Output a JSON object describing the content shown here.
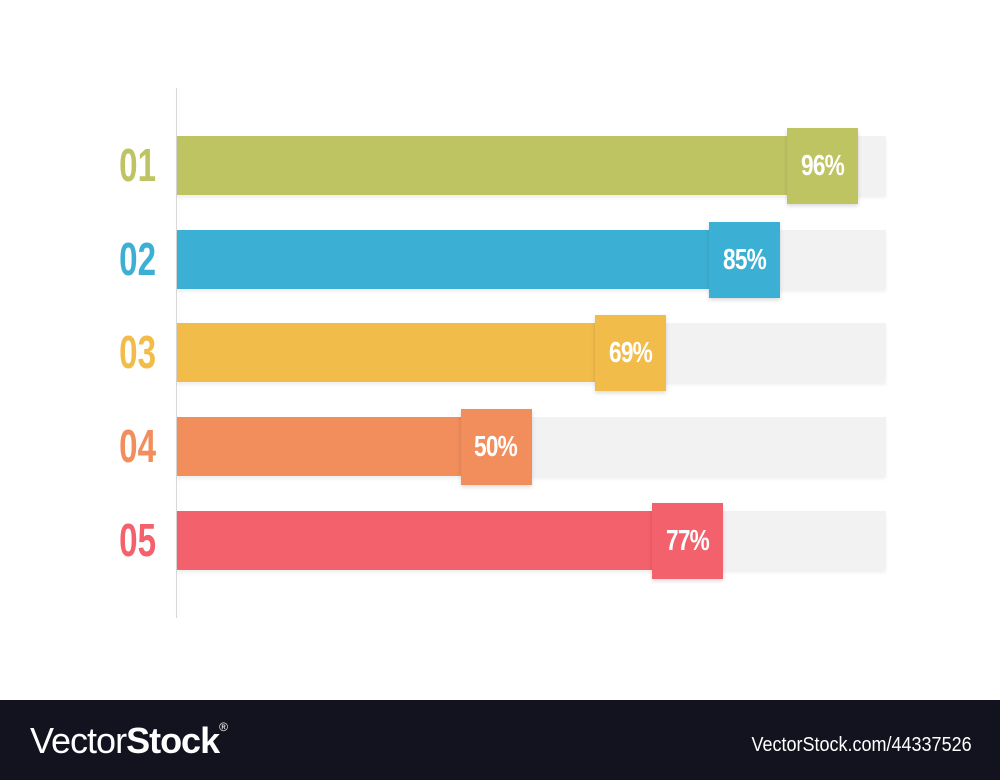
{
  "chart_data": {
    "type": "bar",
    "orientation": "horizontal",
    "categories": [
      "01",
      "02",
      "03",
      "04",
      "05"
    ],
    "values": [
      96,
      85,
      69,
      50,
      77
    ],
    "labels": [
      "96%",
      "85%",
      "69%",
      "50%",
      "77%"
    ],
    "colors": [
      "#bfc462",
      "#3bb0d4",
      "#f2bc4b",
      "#f28d5c",
      "#f2616c"
    ],
    "track_color": "#f2f2f2",
    "xlim": [
      0,
      100
    ],
    "grid": false
  },
  "footer": {
    "logo_light": "Vector",
    "logo_bold": "Stock",
    "logo_mark": "®",
    "image_id": "VectorStock.com/44337526"
  }
}
